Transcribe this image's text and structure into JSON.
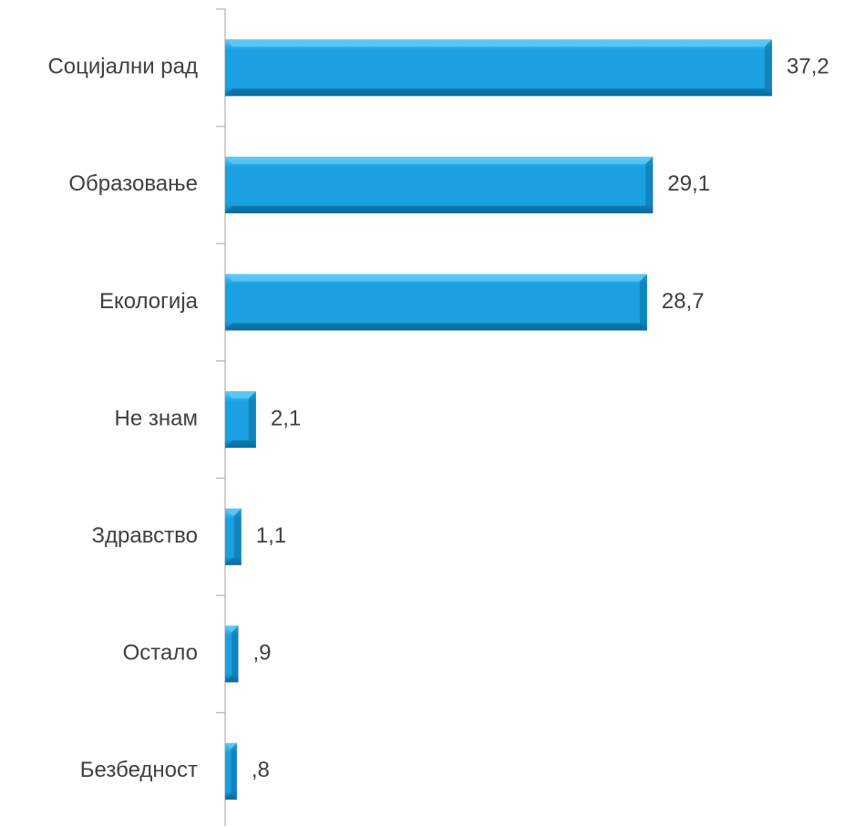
{
  "chart_data": {
    "type": "bar",
    "orientation": "horizontal",
    "categories": [
      "Социјални рад",
      "Образовање",
      "Екологија",
      "Не знам",
      "Здравство",
      "Остало",
      "Безбедност"
    ],
    "values": [
      37.2,
      29.1,
      28.7,
      2.1,
      1.1,
      0.9,
      0.8
    ],
    "value_labels": [
      "37,2",
      "29,1",
      "28,7",
      "2,1",
      "1,1",
      ",9",
      ",8"
    ],
    "title": "",
    "xlabel": "",
    "ylabel": "",
    "xlim": [
      0,
      40
    ],
    "grid": false,
    "legend": "none",
    "colors": {
      "bar_main": "#1BA1E2",
      "bar_top": "#5CC8F5",
      "bar_dark": "#0A6E9E",
      "axis": "#BFBFBF",
      "text": "#404040"
    }
  }
}
